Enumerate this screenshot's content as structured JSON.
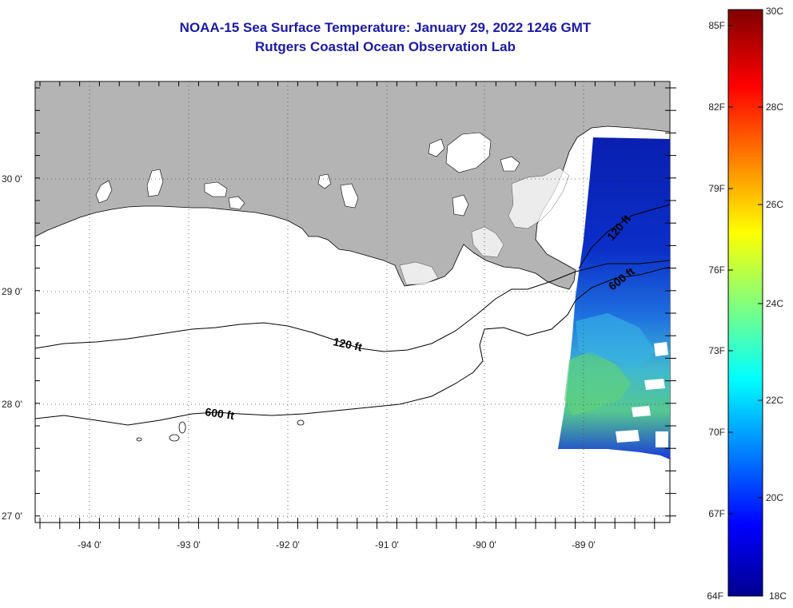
{
  "header": {
    "title": "NOAA-15 Sea Surface Temperature:  January 29, 2022 1246 GMT",
    "subtitle": "Rutgers Coastal Ocean Observation Lab"
  },
  "axes": {
    "lon_labels": [
      "-94 0'",
      "-93 0'",
      "-92 0'",
      "-91 0'",
      "-90 0'",
      "-89 0'"
    ],
    "lat_labels": [
      "30 0'",
      "29 0'",
      "28 0'",
      "27 0'"
    ]
  },
  "contours": {
    "label_120": "120 ft",
    "label_600": "600 ft"
  },
  "colorbar": {
    "fahrenheit": [
      "85F",
      "82F",
      "79F",
      "76F",
      "73F",
      "70F",
      "67F",
      "64F"
    ],
    "celsius": [
      "30C",
      "28C",
      "26C",
      "24C",
      "22C",
      "20C",
      "18C"
    ]
  },
  "colors": {
    "land": "#b4b4b4",
    "title": "#1a1aa6",
    "ocean_bg": "#ffffff"
  }
}
